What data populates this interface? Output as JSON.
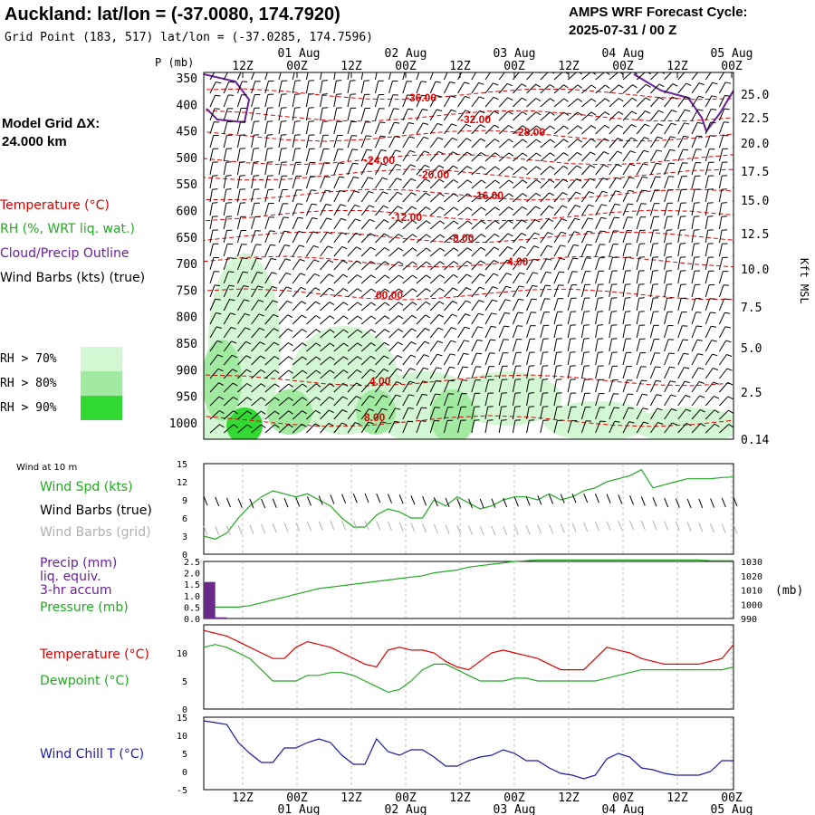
{
  "header": {
    "title": "Auckland:  lat/lon = (-37.0080, 174.7920)",
    "grid_point": "Grid Point (183, 517) lat/lon = (-37.0285, 174.7596)",
    "cycle_line1": "AMPS WRF Forecast Cycle:",
    "cycle_line2": "2025-07-31 / 00  Z"
  },
  "left_labels": {
    "model_grid_line1": "Model Grid ΔX:",
    "model_grid_line2": " 24.000 km",
    "temperature": "Temperature (°C)",
    "rh": "RH (%, WRT liq. wat.)",
    "cloud": "Cloud/Precip Outline",
    "wind_barbs": "Wind Barbs (kts) (true)",
    "rh70": "RH > 70%",
    "rh80": "RH > 80%",
    "rh90": "RH > 90%",
    "p_units": "P (mb)",
    "height_units": "Kft MSL",
    "wind10": "Wind at 10 m",
    "wind_spd": "Wind Spd (kts)",
    "barbs_true": "Wind Barbs (true)",
    "barbs_grid": "Wind Barbs (grid)",
    "precip1": "Precip (mm)",
    "precip2": "liq. equiv.",
    "precip3": "3-hr accum",
    "pressure": "Pressure (mb)",
    "pressure_units": "(mb)",
    "temp2": "Temperature (°C)",
    "dewpoint": "Dewpoint (°C)",
    "windchill": "Wind Chill T (°C)"
  },
  "colors": {
    "temperature": "#e00000",
    "rh": "#22aa22",
    "cloud": "#6a1f9a",
    "windchill": "#1a1aa8",
    "barbs_grid": "#b0b0b0",
    "rh70": "#d2f7d2",
    "rh80": "#a2eaa2",
    "rh90": "#33d933",
    "precip": "#6a2a8a"
  },
  "chart_data": [
    {
      "type": "heatmap",
      "panel": "time-height cross-section",
      "x_top_ticks": [
        "12Z",
        "00Z",
        "12Z",
        "00Z",
        "12Z",
        "00Z",
        "12Z",
        "00Z",
        "12Z",
        "00Z"
      ],
      "x_top_dates": [
        "01 Aug",
        "02 Aug",
        "03 Aug",
        "04 Aug",
        "05 Aug"
      ],
      "pressure_ticks": [
        "350",
        "400",
        "450",
        "500",
        "550",
        "600",
        "650",
        "700",
        "750",
        "800",
        "850",
        "900",
        "950",
        "1000"
      ],
      "height_ticks": [
        "25.0",
        "22.5",
        "20.0",
        "17.5",
        "15.0",
        "12.5",
        "10.0",
        "7.5",
        "5.0",
        "2.5",
        "0.14"
      ],
      "isotherm_labels": [
        "-36.00",
        "-32.00",
        "-28.00",
        "-24.00",
        "-20.00",
        "-16.00",
        "-12.00",
        "-8.00",
        "-4.00",
        "00.00",
        "4.00",
        "8.00"
      ]
    },
    {
      "type": "line",
      "panel": "wind at 10 m",
      "ylim": [
        0,
        15
      ],
      "y_ticks": [
        "0",
        "3",
        "6",
        "9",
        "12",
        "15"
      ],
      "series": [
        {
          "name": "Wind Spd (kts)",
          "values": [
            3,
            2.5,
            3.5,
            6,
            8,
            9.5,
            10.5,
            10,
            9.5,
            10,
            9,
            8,
            6,
            4.5,
            4.5,
            6.5,
            7.5,
            7,
            6,
            6,
            9,
            8,
            9.5,
            8.5,
            7.5,
            8,
            9,
            9.5,
            9.5,
            9,
            10,
            9,
            9.5,
            10.5,
            11,
            12,
            12.5,
            13,
            14,
            11,
            11.5,
            12,
            12.5,
            12.5,
            12.5,
            12.7,
            12.8
          ]
        }
      ]
    },
    {
      "type": "line",
      "panel": "precipitation and pressure",
      "y_left_ticks": [
        "0.0",
        "0.5",
        "1.0",
        "1.5",
        "2.0",
        "2.5"
      ],
      "y_right_ticks": [
        "990",
        "1000",
        "1010",
        "1020",
        "1030"
      ],
      "series": [
        {
          "name": "Pressure (mb)",
          "values": [
            998,
            998,
            998,
            998,
            999,
            1001,
            1003,
            1005,
            1007,
            1009,
            1011,
            1012,
            1013,
            1014,
            1015,
            1016,
            1017,
            1018,
            1019,
            1020,
            1022,
            1023,
            1024,
            1026,
            1027,
            1028,
            1029,
            1030,
            1030.5,
            1031,
            1031,
            1031,
            1031,
            1031,
            1031,
            1031,
            1031,
            1031,
            1031,
            1031,
            1031,
            1031,
            1031,
            1031,
            1030.5,
            1030.5,
            1030.5
          ]
        },
        {
          "name": "Precip (mm)",
          "values": [
            1.6,
            0.05,
            0,
            0,
            0,
            0,
            0,
            0,
            0,
            0,
            0,
            0,
            0,
            0,
            0,
            0,
            0,
            0,
            0,
            0,
            0,
            0,
            0,
            0,
            0,
            0,
            0,
            0,
            0,
            0,
            0,
            0,
            0,
            0,
            0,
            0,
            0,
            0,
            0,
            0,
            0,
            0,
            0,
            0,
            0,
            0,
            0
          ]
        }
      ]
    },
    {
      "type": "line",
      "panel": "temperature and dewpoint",
      "ylim": [
        0,
        15
      ],
      "y_ticks": [
        "0",
        "5",
        "10"
      ],
      "series": [
        {
          "name": "Temperature (°C)",
          "values": [
            14,
            13.5,
            13,
            12,
            11,
            10,
            9,
            9,
            11,
            12,
            11.5,
            11,
            10,
            9,
            8,
            7.5,
            10.5,
            11,
            10.5,
            10.5,
            10,
            8.5,
            7.5,
            7,
            8.5,
            10,
            10.5,
            10,
            9.5,
            9,
            8,
            7,
            7,
            7,
            9,
            11,
            10.5,
            10,
            9,
            8.5,
            8,
            8,
            8,
            8,
            8.5,
            9,
            11.5
          ]
        },
        {
          "name": "Dewpoint (°C)",
          "values": [
            11,
            11.5,
            11,
            10,
            9,
            7,
            5,
            5,
            5,
            6,
            6,
            6.5,
            6.5,
            6,
            5,
            4,
            3,
            3.5,
            5,
            7,
            8,
            8,
            7,
            6,
            5,
            5,
            5,
            5.5,
            5.5,
            5,
            5,
            5,
            5,
            5,
            5,
            5.5,
            6,
            6.5,
            7,
            7,
            7,
            7,
            7,
            7,
            7,
            7,
            7.5
          ]
        }
      ]
    },
    {
      "type": "line",
      "panel": "wind chill",
      "ylim": [
        -5,
        15
      ],
      "y_ticks": [
        "-5",
        "0",
        "5",
        "10",
        "15"
      ],
      "series": [
        {
          "name": "Wind Chill T (°C)",
          "values": [
            14,
            13.5,
            13,
            8,
            5,
            2.5,
            2.5,
            6.5,
            6.5,
            8,
            9,
            8,
            4.5,
            2,
            2,
            9,
            5.5,
            4.5,
            6,
            6,
            4,
            1.5,
            1.5,
            3,
            4,
            4.5,
            6,
            5,
            3,
            3,
            1,
            -0.5,
            -1,
            -2,
            -1,
            3.5,
            5,
            4,
            1,
            0.5,
            -0.5,
            -1,
            -1,
            -1,
            0,
            3,
            3
          ]
        }
      ]
    },
    {
      "type": "line",
      "panel": "bottom time axis",
      "x_ticks": [
        "12Z",
        "00Z",
        "12Z",
        "00Z",
        "12Z",
        "00Z",
        "12Z",
        "00Z",
        "12Z",
        "00Z"
      ],
      "x_dates": [
        "01 Aug",
        "02 Aug",
        "03 Aug",
        "04 Aug",
        "05 Aug"
      ]
    }
  ]
}
